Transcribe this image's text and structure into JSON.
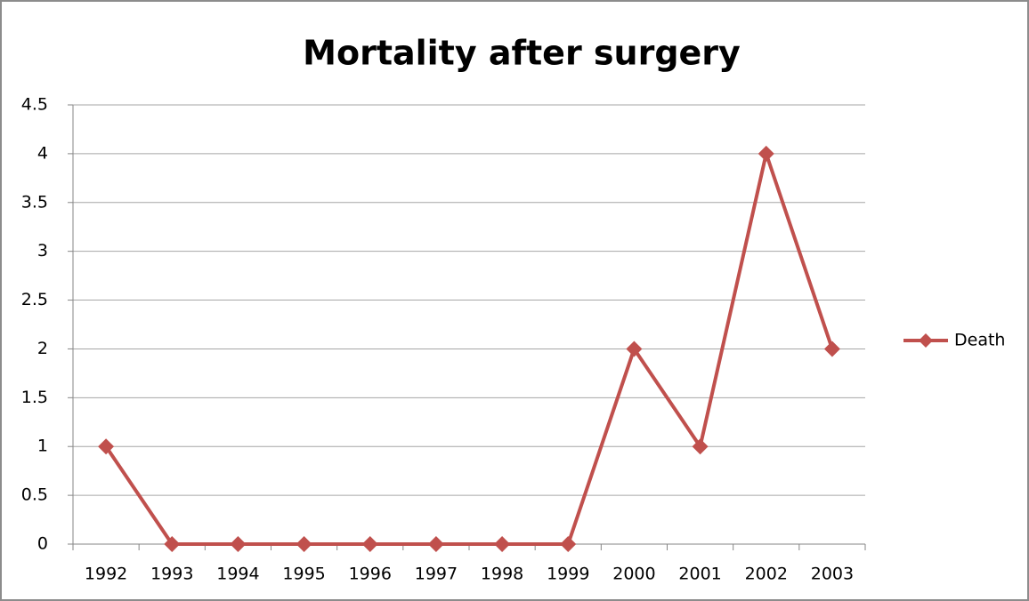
{
  "chart_data": {
    "type": "line",
    "title": "Mortality after surgery",
    "categories": [
      "1992",
      "1993",
      "1994",
      "1995",
      "1996",
      "1997",
      "1998",
      "1999",
      "2000",
      "2001",
      "2002",
      "2003"
    ],
    "series": [
      {
        "name": "Death",
        "color": "#c0504d",
        "values": [
          1,
          0,
          0,
          0,
          0,
          0,
          0,
          0,
          2,
          1,
          4,
          2
        ]
      }
    ],
    "ylim": [
      0,
      4.5
    ],
    "yticks": [
      0,
      0.5,
      1,
      1.5,
      2,
      2.5,
      3,
      3.5,
      4,
      4.5
    ],
    "grid": true,
    "legend": "right"
  }
}
